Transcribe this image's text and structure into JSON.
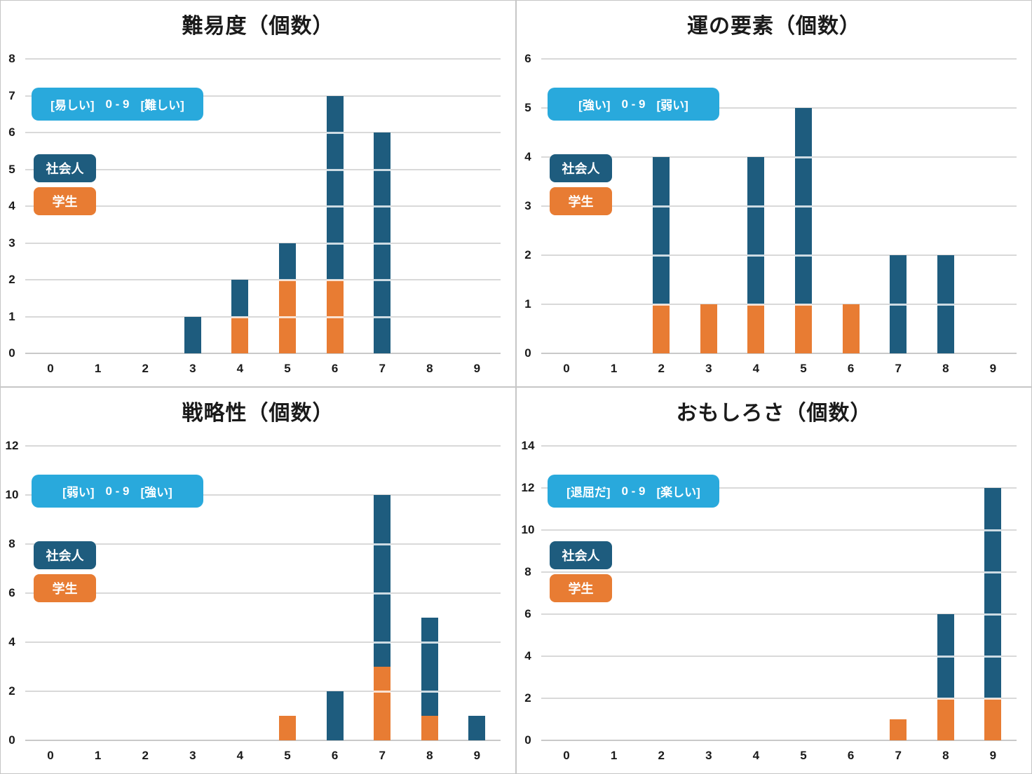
{
  "colors": {
    "adult": "#1E5C7E",
    "student": "#E87C33",
    "scale_pill": "#29A9DC",
    "gridline": "#D9D9D9",
    "axis_text": "#1A1A1A"
  },
  "legend": {
    "adult_label": "社会人",
    "student_label": "学生",
    "position": "upper-left-overlay"
  },
  "chart_data": [
    {
      "type": "bar",
      "stacked": true,
      "title": "難易度（個数）",
      "scale_note": {
        "left": "[易しい]",
        "range": "0 - 9",
        "right": "[難しい]"
      },
      "categories": [
        "0",
        "1",
        "2",
        "3",
        "4",
        "5",
        "6",
        "7",
        "8",
        "9"
      ],
      "series": [
        {
          "name": "学生",
          "color_key": "student",
          "values": [
            0,
            0,
            0,
            0,
            1,
            2,
            2,
            0,
            0,
            0
          ]
        },
        {
          "name": "社会人",
          "color_key": "adult",
          "values": [
            0,
            0,
            0,
            1,
            1,
            1,
            5,
            6,
            0,
            0
          ]
        }
      ],
      "xlabel": "",
      "ylabel": "",
      "ylim": [
        0,
        8
      ],
      "ytick_step": 1,
      "grid": true
    },
    {
      "type": "bar",
      "stacked": true,
      "title": "運の要素（個数）",
      "scale_note": {
        "left": "[強い]",
        "range": "0 - 9",
        "right": "[弱い]"
      },
      "categories": [
        "0",
        "1",
        "2",
        "3",
        "4",
        "5",
        "6",
        "7",
        "8",
        "9"
      ],
      "series": [
        {
          "name": "学生",
          "color_key": "student",
          "values": [
            0,
            0,
            1,
            1,
            1,
            1,
            1,
            0,
            0,
            0
          ]
        },
        {
          "name": "社会人",
          "color_key": "adult",
          "values": [
            0,
            0,
            3,
            0,
            3,
            4,
            0,
            2,
            2,
            0
          ]
        }
      ],
      "xlabel": "",
      "ylabel": "",
      "ylim": [
        0,
        6
      ],
      "ytick_step": 1,
      "grid": true
    },
    {
      "type": "bar",
      "stacked": true,
      "title": "戦略性（個数）",
      "scale_note": {
        "left": "[弱い]",
        "range": "0 - 9",
        "right": "[強い]"
      },
      "categories": [
        "0",
        "1",
        "2",
        "3",
        "4",
        "5",
        "6",
        "7",
        "8",
        "9"
      ],
      "series": [
        {
          "name": "学生",
          "color_key": "student",
          "values": [
            0,
            0,
            0,
            0,
            0,
            1,
            0,
            3,
            1,
            0
          ]
        },
        {
          "name": "社会人",
          "color_key": "adult",
          "values": [
            0,
            0,
            0,
            0,
            0,
            0,
            2,
            7,
            4,
            1
          ]
        }
      ],
      "xlabel": "",
      "ylabel": "",
      "ylim": [
        0,
        12
      ],
      "ytick_step": 2,
      "grid": true
    },
    {
      "type": "bar",
      "stacked": true,
      "title": "おもしろさ（個数）",
      "scale_note": {
        "left": "[退屈だ]",
        "range": "0 - 9",
        "right": "[楽しい]"
      },
      "categories": [
        "0",
        "1",
        "2",
        "3",
        "4",
        "5",
        "6",
        "7",
        "8",
        "9"
      ],
      "series": [
        {
          "name": "学生",
          "color_key": "student",
          "values": [
            0,
            0,
            0,
            0,
            0,
            0,
            0,
            1,
            2,
            2
          ]
        },
        {
          "name": "社会人",
          "color_key": "adult",
          "values": [
            0,
            0,
            0,
            0,
            0,
            0,
            0,
            0,
            4,
            10
          ]
        }
      ],
      "xlabel": "",
      "ylabel": "",
      "ylim": [
        0,
        14
      ],
      "ytick_step": 2,
      "grid": true
    }
  ]
}
